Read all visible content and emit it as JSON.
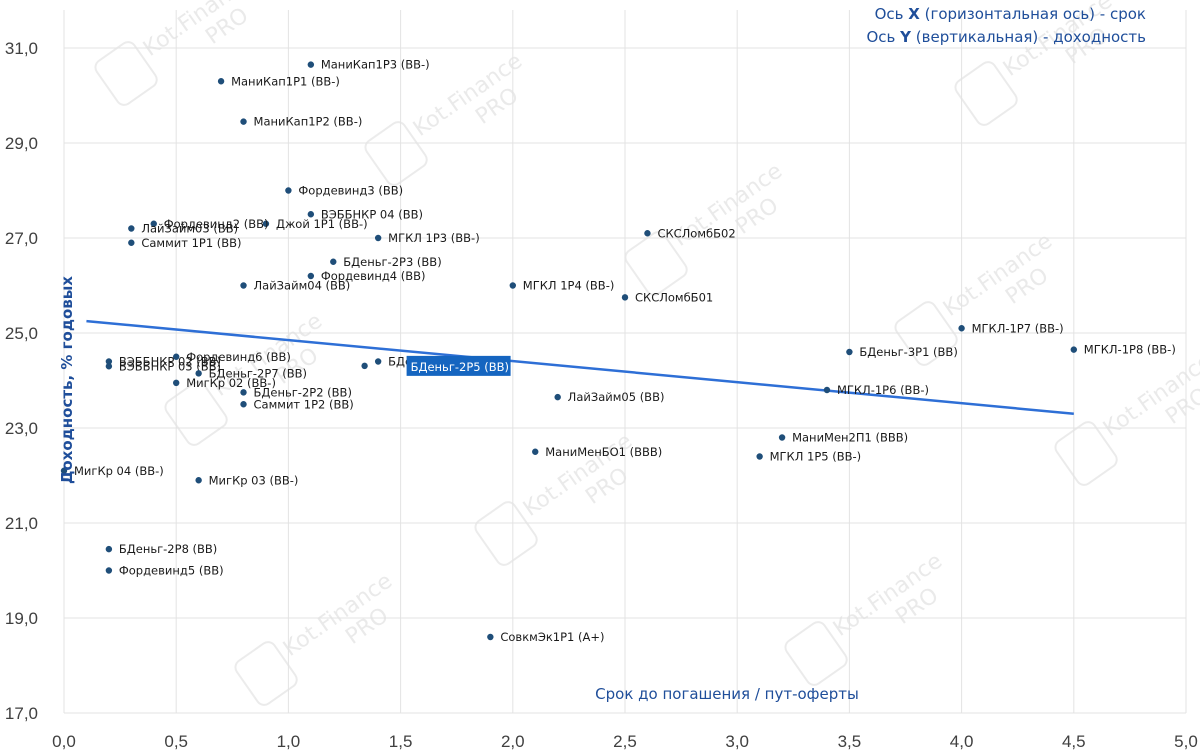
{
  "chart_data": {
    "type": "scatter",
    "title": "",
    "xlabel": "Срок до погашения / пут-оферты",
    "ylabel": "Доходность, % годовых",
    "xlim": [
      0.0,
      5.0
    ],
    "ylim": [
      17.0,
      31.8
    ],
    "xticks": [
      "0,0",
      "0,5",
      "1,0",
      "1,5",
      "2,0",
      "2,5",
      "3,0",
      "3,5",
      "4,0",
      "4,5",
      "5,0"
    ],
    "yticks": [
      "17,0",
      "19,0",
      "21,0",
      "23,0",
      "25,0",
      "27,0",
      "29,0",
      "31,0"
    ],
    "grid": true,
    "legend_lines": [
      {
        "pre": "Ось ",
        "bold": "X",
        "post": " (горизонтальная ось) - срок"
      },
      {
        "pre": "Ось ",
        "bold": "Y",
        "post": " (вертикальная) - доходность"
      }
    ],
    "points": [
      {
        "label": "МаниКап1Р3 (BB-)",
        "x": 1.1,
        "y": 30.65
      },
      {
        "label": "МаниКап1Р1 (BB-)",
        "x": 0.7,
        "y": 30.3
      },
      {
        "label": "МаниКап1Р2 (BB-)",
        "x": 0.8,
        "y": 29.45
      },
      {
        "label": "Фордевинд3 (BB)",
        "x": 1.0,
        "y": 28.0
      },
      {
        "label": "ВЭББНКР 04 (BB)",
        "x": 1.1,
        "y": 27.5
      },
      {
        "label": "Джой 1Р1 (BB-)",
        "x": 0.9,
        "y": 27.3
      },
      {
        "label": "Фордевинд2 (BB)",
        "x": 0.4,
        "y": 27.3
      },
      {
        "label": "ЛайЗайм03 (BB)",
        "x": 0.3,
        "y": 27.2
      },
      {
        "label": "Саммит 1Р1 (BB)",
        "x": 0.3,
        "y": 26.9
      },
      {
        "label": "МГКЛ 1Р3 (BB-)",
        "x": 1.4,
        "y": 27.0
      },
      {
        "label": "СКСЛомбБ02",
        "x": 2.6,
        "y": 27.1
      },
      {
        "label": "БДеньг-2Р3 (BB)",
        "x": 1.2,
        "y": 26.5
      },
      {
        "label": "Фордевинд4 (BB)",
        "x": 1.1,
        "y": 26.2
      },
      {
        "label": "ЛайЗайм04 (BB)",
        "x": 0.8,
        "y": 26.0
      },
      {
        "label": "МГКЛ 1Р4 (BB-)",
        "x": 2.0,
        "y": 26.0
      },
      {
        "label": "СКСЛомбБ01",
        "x": 2.5,
        "y": 25.75
      },
      {
        "label": "МГКЛ-1Р7 (BB-)",
        "x": 4.0,
        "y": 25.1
      },
      {
        "label": "МГКЛ-1Р8 (BB-)",
        "x": 4.5,
        "y": 24.65
      },
      {
        "label": "БДеньг-3Р1 (BB)",
        "x": 3.5,
        "y": 24.6
      },
      {
        "label": "Фордевинд6 (BB)",
        "x": 0.5,
        "y": 24.5
      },
      {
        "label": "ВЭББНКР 02 (BB)",
        "x": 0.2,
        "y": 24.4
      },
      {
        "label": "ВЭББНКР 03 (BB)",
        "x": 0.2,
        "y": 24.3
      },
      {
        "label": "БДеньг-2Р7 (BB)",
        "x": 0.6,
        "y": 24.15
      },
      {
        "label": "БДеньг-2Р4 (BB)",
        "x": 1.4,
        "y": 24.4
      },
      {
        "label": "МигКр 02 (BB-)",
        "x": 0.5,
        "y": 23.95
      },
      {
        "label": "БДеньг-2Р2 (BB)",
        "x": 0.8,
        "y": 23.75
      },
      {
        "label": "Саммит 1Р2 (BB)",
        "x": 0.8,
        "y": 23.5
      },
      {
        "label": "МГКЛ-1Р6 (BB-)",
        "x": 3.4,
        "y": 23.8
      },
      {
        "label": "ЛайЗайм05 (BB)",
        "x": 2.2,
        "y": 23.65
      },
      {
        "label": "МаниМен2П1 (BBB)",
        "x": 3.2,
        "y": 22.8
      },
      {
        "label": "МГКЛ 1Р5 (BB-)",
        "x": 3.1,
        "y": 22.4
      },
      {
        "label": "МаниМенБО1 (BBB)",
        "x": 2.1,
        "y": 22.5
      },
      {
        "label": "МигКр 04 (BB-)",
        "x": 0.0,
        "y": 22.1
      },
      {
        "label": "МигКр 03 (BB-)",
        "x": 0.6,
        "y": 21.9
      },
      {
        "label": "БДеньг-2Р8 (BB)",
        "x": 0.2,
        "y": 20.45
      },
      {
        "label": "Фордевинд5 (BB)",
        "x": 0.2,
        "y": 20.0
      },
      {
        "label": "СовкмЭк1Р1 (A+)",
        "x": 1.9,
        "y": 18.6
      }
    ],
    "highlight": {
      "label": "БДеньг-2Р5 (BB)",
      "x": 1.5,
      "y": 24.35
    },
    "trendline": {
      "x1": 0.1,
      "y1": 25.25,
      "x2": 4.5,
      "y2": 23.3
    },
    "colors": {
      "point": "#1f4e79",
      "trend": "#2e6fd6",
      "highlight_bg": "#1565c0",
      "grid": "#e3e3e3",
      "axis_text": "#1f4e9a"
    }
  },
  "watermark": {
    "brand": "Kot.Finance",
    "badge": "PRO"
  }
}
